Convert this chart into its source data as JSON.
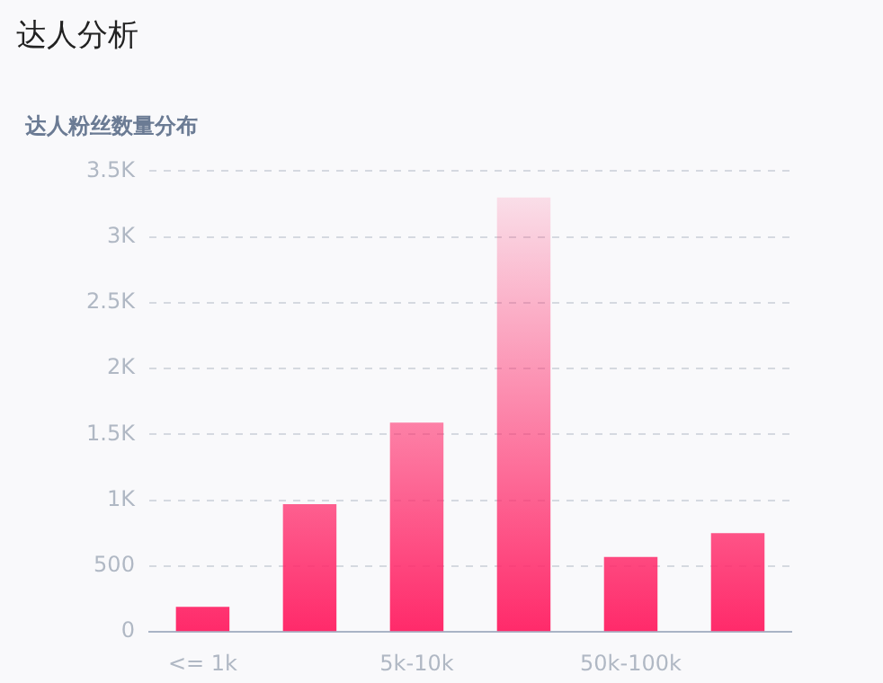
{
  "chart_data": {
    "type": "bar",
    "title": "达人分析",
    "subtitle": "达人粉丝数量分布",
    "categories": [
      "<= 1k",
      null,
      "5k-10k",
      null,
      "50k-100k",
      null
    ],
    "values": [
      190,
      970,
      1590,
      3300,
      570,
      750
    ],
    "color": "#ff2a6a",
    "ylim": [
      0,
      3500
    ],
    "yticks": [
      0,
      500,
      {
        "value": 1000,
        "label": "1K"
      },
      {
        "value": 1500,
        "label": "1.5K"
      },
      {
        "value": 2000,
        "label": "2K"
      },
      {
        "value": 2500,
        "label": "2.5K"
      },
      {
        "value": 3000,
        "label": "3K"
      },
      {
        "value": 3500,
        "label": "3.5K"
      }
    ],
    "grid": "y",
    "legend": false
  }
}
